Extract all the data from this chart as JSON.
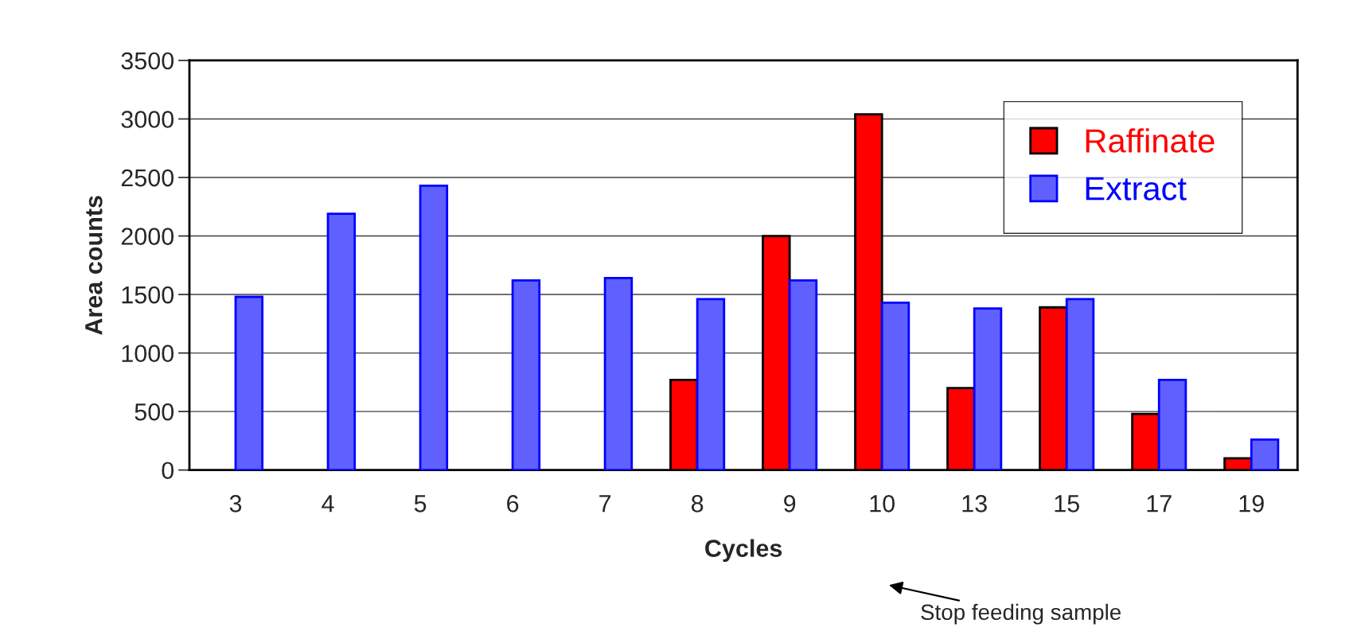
{
  "chart_data": {
    "type": "bar",
    "xlabel": "Cycles",
    "ylabel": "Area counts",
    "categories": [
      "3",
      "4",
      "5",
      "6",
      "7",
      "8",
      "9",
      "10",
      "13",
      "15",
      "17",
      "19"
    ],
    "series": [
      {
        "name": "Raffinate",
        "color": "#ff0000",
        "values": [
          null,
          null,
          null,
          null,
          null,
          770,
          2000,
          3040,
          700,
          1390,
          480,
          100
        ]
      },
      {
        "name": "Extract",
        "color": "#6060ff",
        "values": [
          1480,
          2190,
          2430,
          1620,
          1640,
          1460,
          1620,
          1430,
          1380,
          1460,
          770,
          260
        ]
      }
    ],
    "ylim": [
      0,
      3500
    ],
    "yticks": [
      0,
      500,
      1000,
      1500,
      2000,
      2500,
      3000,
      3500
    ],
    "grid": "y",
    "legend": "top right",
    "annotations": [
      "Stop feeding sample"
    ]
  }
}
